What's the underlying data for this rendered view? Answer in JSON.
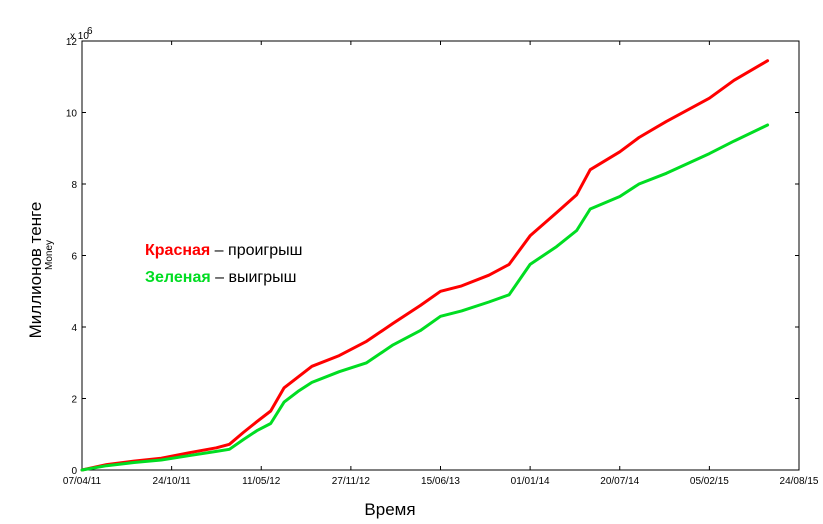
{
  "chart_data": {
    "type": "line",
    "title": "",
    "xlabel": "Время",
    "ylabel": "Миллионов тенге",
    "y_multiplier_label": "x 10",
    "y_multiplier_exponent": "6",
    "y_obscured_label": "Money",
    "xlim": [
      "07/04/11",
      "24/08/15"
    ],
    "ylim": [
      0,
      12000000
    ],
    "x_ticks": [
      "07/04/11",
      "24/10/11",
      "11/05/12",
      "27/11/12",
      "15/06/13",
      "01/01/14",
      "20/07/14",
      "05/02/15",
      "24/08/15"
    ],
    "y_ticks": [
      "0",
      "2",
      "4",
      "6",
      "8",
      "10",
      "12"
    ],
    "grid": false,
    "legend": [
      {
        "name": "Красная",
        "suffix": " – проигрыш",
        "color": "#ff0000"
      },
      {
        "name": "Зеленая",
        "suffix": " – выигрыш",
        "color": "#00dd22"
      }
    ],
    "series": [
      {
        "name": "Красная",
        "color": "#ff0000",
        "points": [
          [
            "07/04/11",
            0
          ],
          [
            "01/06/11",
            150000
          ],
          [
            "01/08/11",
            250000
          ],
          [
            "01/10/11",
            330000
          ],
          [
            "01/12/11",
            480000
          ],
          [
            "01/02/12",
            620000
          ],
          [
            "01/03/12",
            720000
          ],
          [
            "01/04/12",
            1050000
          ],
          [
            "01/05/12",
            1350000
          ],
          [
            "01/06/12",
            1650000
          ],
          [
            "01/07/12",
            2300000
          ],
          [
            "01/08/12",
            2600000
          ],
          [
            "01/09/12",
            2900000
          ],
          [
            "01/11/12",
            3200000
          ],
          [
            "01/01/13",
            3600000
          ],
          [
            "01/03/13",
            4100000
          ],
          [
            "01/05/13",
            4600000
          ],
          [
            "15/06/13",
            5000000
          ],
          [
            "01/08/13",
            5150000
          ],
          [
            "01/10/13",
            5450000
          ],
          [
            "15/11/13",
            5750000
          ],
          [
            "01/01/14",
            6550000
          ],
          [
            "01/03/14",
            7200000
          ],
          [
            "15/04/14",
            7700000
          ],
          [
            "15/05/14",
            8400000
          ],
          [
            "20/07/14",
            8900000
          ],
          [
            "01/09/14",
            9300000
          ],
          [
            "01/11/14",
            9750000
          ],
          [
            "05/02/15",
            10400000
          ],
          [
            "01/04/15",
            10900000
          ],
          [
            "15/06/15",
            11450000
          ]
        ]
      },
      {
        "name": "Зеленая",
        "color": "#00dd22",
        "points": [
          [
            "07/04/11",
            0
          ],
          [
            "01/06/11",
            120000
          ],
          [
            "01/08/11",
            210000
          ],
          [
            "01/10/11",
            280000
          ],
          [
            "01/12/11",
            400000
          ],
          [
            "01/02/12",
            520000
          ],
          [
            "01/03/12",
            580000
          ],
          [
            "01/04/12",
            850000
          ],
          [
            "01/05/12",
            1100000
          ],
          [
            "01/06/12",
            1300000
          ],
          [
            "01/07/12",
            1900000
          ],
          [
            "01/08/12",
            2200000
          ],
          [
            "01/09/12",
            2450000
          ],
          [
            "01/11/12",
            2750000
          ],
          [
            "01/01/13",
            3000000
          ],
          [
            "01/03/13",
            3500000
          ],
          [
            "01/05/13",
            3900000
          ],
          [
            "15/06/13",
            4300000
          ],
          [
            "01/08/13",
            4450000
          ],
          [
            "01/10/13",
            4700000
          ],
          [
            "15/11/13",
            4900000
          ],
          [
            "01/01/14",
            5750000
          ],
          [
            "01/03/14",
            6250000
          ],
          [
            "15/04/14",
            6700000
          ],
          [
            "15/05/14",
            7300000
          ],
          [
            "20/07/14",
            7650000
          ],
          [
            "01/09/14",
            8000000
          ],
          [
            "01/11/14",
            8300000
          ],
          [
            "05/02/15",
            8850000
          ],
          [
            "01/04/15",
            9200000
          ],
          [
            "15/06/15",
            9650000
          ]
        ]
      }
    ]
  }
}
